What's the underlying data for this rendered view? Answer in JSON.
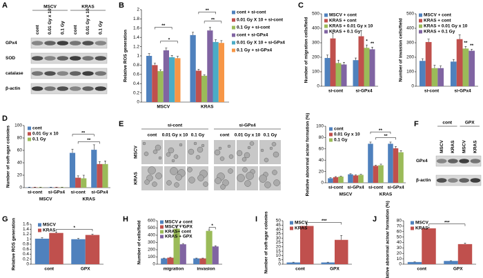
{
  "panel_letters": [
    "A",
    "B",
    "C",
    "D",
    "E",
    "F",
    "G",
    "H",
    "I",
    "J"
  ],
  "blots": [
    {
      "groups": [
        "MSCV",
        "KRAS"
      ],
      "lanes": [
        "cont",
        "0.01 Gy x 10",
        "0.1 Gy",
        "cont",
        "0.01 Gy x 10",
        "0.1 Gy"
      ],
      "rows": [
        "GPx4",
        "SOD",
        "catalase",
        "β-actin"
      ]
    },
    {
      "groups": [
        "cont",
        "GPX"
      ],
      "lanes": [
        "MSCV",
        "KRAS",
        "MSCV",
        "KRAS"
      ],
      "rows": [
        "GPx4",
        "β-actin"
      ]
    }
  ],
  "micrographs": {
    "groups": [
      "si-cont",
      "si-GPx4"
    ],
    "columns": [
      "cont",
      "0.01 Gy x 10",
      "0.1 Gy",
      "cont",
      "0.01 Gy x 10",
      "0.1 Gy"
    ],
    "rows": [
      "MSCV",
      "KRAS"
    ]
  },
  "chart_data": [
    {
      "type": "bar",
      "ylabel": "Relative ROS generation",
      "categories": [
        "MSCV",
        "KRAS"
      ],
      "series": [
        {
          "name": "cont + si-cont",
          "color": "#4f81bd",
          "values": [
            1.0,
            1.45
          ],
          "errors": [
            0.05,
            0.06
          ]
        },
        {
          "name": "0.01 Gy X 10 + si-cont",
          "color": "#c0504d",
          "values": [
            0.8,
            0.68
          ],
          "errors": [
            0.04,
            0.03
          ]
        },
        {
          "name": "0.1 Gy + si-cont",
          "color": "#9bbb59",
          "values": [
            0.67,
            0.57
          ],
          "errors": [
            0.03,
            0.02
          ]
        },
        {
          "name": "cont + si-GPx4",
          "color": "#8064a2",
          "values": [
            1.12,
            1.55
          ],
          "errors": [
            0.05,
            0.07
          ]
        },
        {
          "name": "0.01 Gy X 10 + si-GPx4",
          "color": "#4bacc6",
          "values": [
            0.97,
            1.3
          ],
          "errors": [
            0.04,
            0.05
          ]
        },
        {
          "name": "0.1 Gy + si-GPx4",
          "color": "#f79646",
          "values": [
            0.95,
            1.28
          ],
          "errors": [
            0.04,
            0.05
          ]
        }
      ],
      "ylim": [
        0,
        2
      ],
      "yticks": [
        0,
        0.2,
        0.4,
        0.6,
        0.8,
        1,
        1.2,
        1.4,
        1.6,
        1.8,
        2
      ],
      "annotations": [
        "**",
        "*",
        "**",
        "**"
      ]
    },
    {
      "type": "bar",
      "ylabel": "Number of migration cells/field",
      "categories": [
        "si-cont",
        "si-GPx4"
      ],
      "series": [
        {
          "name": "MSCV + cont",
          "color": "#4f81bd",
          "values": [
            195,
            180
          ],
          "errors": [
            20,
            15
          ]
        },
        {
          "name": "KRAS + cont",
          "color": "#c0504d",
          "values": [
            330,
            345
          ],
          "errors": [
            35,
            40
          ]
        },
        {
          "name": "KRAS + 0.01 Gy x 10",
          "color": "#9bbb59",
          "values": [
            160,
            265
          ],
          "errors": [
            20,
            20
          ]
        },
        {
          "name": "KRAS + 0.1 Gy",
          "color": "#8064a2",
          "values": [
            150,
            255
          ],
          "errors": [
            15,
            15
          ]
        }
      ],
      "ylim": [
        0,
        500
      ],
      "yticks": [
        0,
        100,
        200,
        300,
        400,
        500
      ],
      "annotations": [
        "*",
        "**"
      ]
    },
    {
      "type": "bar",
      "ylabel": "Number of invasion cells/field",
      "categories": [
        "si-cont",
        "si-GPx4"
      ],
      "series": [
        {
          "name": "MSCV + cont",
          "color": "#4f81bd",
          "values": [
            175,
            170
          ],
          "errors": [
            15,
            15
          ]
        },
        {
          "name": "KRAS + cont",
          "color": "#c0504d",
          "values": [
            305,
            325
          ],
          "errors": [
            20,
            30
          ]
        },
        {
          "name": "KRAS + 0.01 Gy x 10",
          "color": "#9bbb59",
          "values": [
            125,
            260
          ],
          "errors": [
            20,
            15
          ]
        },
        {
          "name": "KRAS + 0.1 Gy",
          "color": "#8064a2",
          "values": [
            125,
            245
          ],
          "errors": [
            15,
            10
          ]
        }
      ],
      "ylim": [
        0,
        500
      ],
      "yticks": [
        0,
        100,
        200,
        300,
        400,
        500
      ],
      "annotations": [
        "**",
        "**"
      ]
    },
    {
      "type": "bar",
      "ylabel": "Number of soft-agar colonies",
      "categories": [
        "si-cont",
        "si-GPx4",
        "si-cont",
        "si-GPx4"
      ],
      "groups": [
        "MSCV",
        "KRAS"
      ],
      "series": [
        {
          "name": "cont",
          "color": "#4f81bd",
          "values": [
            0.5,
            0.5,
            56,
            61
          ],
          "errors": [
            0.3,
            0.3,
            6,
            8
          ]
        },
        {
          "name": "0.01 Gy x 10",
          "color": "#c0504d",
          "values": [
            0.5,
            0.5,
            16,
            38
          ],
          "errors": [
            0.3,
            0.3,
            3,
            4
          ]
        },
        {
          "name": "0.1 Gy",
          "color": "#9bbb59",
          "values": [
            0.5,
            0.5,
            15,
            38
          ],
          "errors": [
            0.3,
            0.3,
            5,
            5
          ]
        }
      ],
      "ylim": [
        0,
        100
      ],
      "yticks": [
        0,
        20,
        40,
        60,
        80,
        100
      ],
      "annotations": [
        "**",
        "**"
      ]
    },
    {
      "type": "bar",
      "ylabel": "Relative abnormal acinar formation (%)",
      "categories": [
        "si-cont",
        "si-GPx4",
        "si-cont",
        "si-GPx4"
      ],
      "groups": [
        "MSCV",
        "KRAS"
      ],
      "series": [
        {
          "name": "cont",
          "color": "#4f81bd",
          "values": [
            8,
            15,
            69,
            69
          ],
          "errors": [
            1,
            1,
            3,
            3
          ]
        },
        {
          "name": "0.01 Gy x 10",
          "color": "#c0504d",
          "values": [
            10,
            13,
            30,
            61
          ],
          "errors": [
            1,
            1,
            1,
            3
          ]
        },
        {
          "name": "0.1 Gy",
          "color": "#9bbb59",
          "values": [
            11,
            14,
            31,
            54
          ],
          "errors": [
            1,
            1,
            2,
            3
          ]
        }
      ],
      "ylim": [
        0,
        100
      ],
      "yticks": [
        0,
        20,
        40,
        60,
        80,
        100
      ],
      "annotations": [
        "**",
        "**"
      ]
    },
    {
      "type": "bar",
      "ylabel": "Relative ROS generation",
      "categories": [
        "cont",
        "GPX"
      ],
      "series": [
        {
          "name": "MSCV",
          "color": "#4f81bd",
          "values": [
            1.02,
            1.0
          ],
          "errors": [
            0.04,
            0.03
          ]
        },
        {
          "name": "KRAS",
          "color": "#c0504d",
          "values": [
            1.25,
            1.17
          ],
          "errors": [
            0.04,
            0.03
          ]
        }
      ],
      "ylim": [
        0,
        1.6
      ],
      "yticks": [
        0,
        0.2,
        0.4,
        0.6,
        0.8,
        1,
        1.2,
        1.4,
        1.6
      ],
      "annotations": [
        "*"
      ]
    },
    {
      "type": "bar",
      "ylabel": "Number of cells/field",
      "categories": [
        "migration",
        "invasion"
      ],
      "series": [
        {
          "name": "MSCV + cont",
          "color": "#4f81bd",
          "values": [
            80,
            80
          ],
          "errors": [
            5,
            5
          ]
        },
        {
          "name": "MSCV + GPX",
          "color": "#c0504d",
          "values": [
            90,
            80
          ],
          "errors": [
            5,
            5
          ]
        },
        {
          "name": "KRAS+ cont",
          "color": "#9bbb59",
          "values": [
            490,
            460
          ],
          "errors": [
            25,
            15
          ]
        },
        {
          "name": "KRAS + GPX",
          "color": "#8064a2",
          "values": [
            275,
            245
          ],
          "errors": [
            10,
            10
          ]
        }
      ],
      "ylim": [
        0,
        600
      ],
      "yticks": [
        0,
        100,
        200,
        300,
        400,
        500,
        600
      ],
      "annotations": [
        "*",
        "*"
      ]
    },
    {
      "type": "bar",
      "ylabel": "Number of soft-agar colonies",
      "categories": [
        "cont",
        "GPX"
      ],
      "series": [
        {
          "name": "MSCV",
          "color": "#4f81bd",
          "values": [
            2,
            2
          ],
          "errors": [
            0.3,
            0.3
          ]
        },
        {
          "name": "KRAS",
          "color": "#c0504d",
          "values": [
            44,
            28
          ],
          "errors": [
            2,
            5
          ]
        }
      ],
      "ylim": [
        0,
        50
      ],
      "yticks": [
        0,
        5,
        10,
        15,
        20,
        25,
        30,
        35,
        40,
        45,
        50
      ],
      "annotations": [
        "***"
      ]
    },
    {
      "type": "bar",
      "ylabel": "Relative abnormal acinar formation (%)",
      "categories": [
        "cont",
        "GPX"
      ],
      "series": [
        {
          "name": "MSCV",
          "color": "#4f81bd",
          "values": [
            4,
            6
          ],
          "errors": [
            0.3,
            0.4
          ]
        },
        {
          "name": "KRAS",
          "color": "#c0504d",
          "values": [
            66,
            37
          ],
          "errors": [
            2,
            2
          ]
        }
      ],
      "ylim": [
        0,
        80
      ],
      "yticks": [
        0,
        10,
        20,
        30,
        40,
        50,
        60,
        70,
        80
      ],
      "annotations": [
        "***"
      ]
    }
  ]
}
